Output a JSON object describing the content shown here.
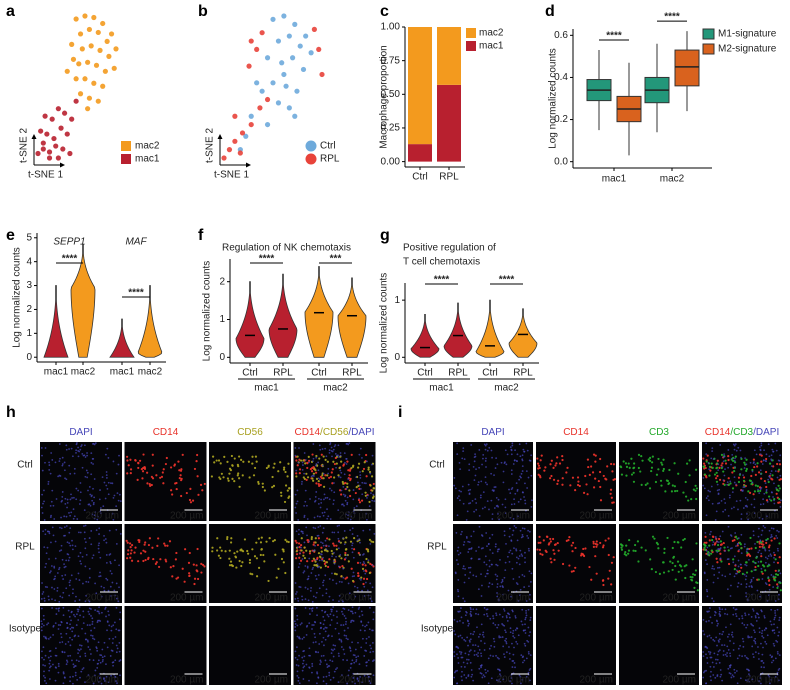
{
  "chart_data": [
    {
      "type": "scatter",
      "panel": "a",
      "xlabel": "t-SNE 1",
      "ylabel": "t-SNE 2",
      "legend_marker": "square",
      "series": [
        {
          "name": "mac2",
          "color": "#f39a1e",
          "x": [
            45,
            55,
            65,
            75,
            85,
            50,
            60,
            70,
            80,
            90,
            40,
            52,
            62,
            72,
            82,
            48,
            58,
            68,
            78,
            88,
            55,
            65,
            75,
            45,
            60,
            70,
            35,
            42,
            50,
            58
          ],
          "y": [
            95,
            97,
            96,
            92,
            85,
            85,
            88,
            86,
            80,
            75,
            78,
            75,
            77,
            74,
            70,
            65,
            66,
            64,
            60,
            62,
            55,
            52,
            50,
            55,
            42,
            40,
            60,
            68,
            45,
            35
          ]
        },
        {
          "name": "mac1",
          "color": "#b8202f",
          "x": [
            2,
            8,
            15,
            22,
            30,
            38,
            5,
            12,
            20,
            28,
            35,
            10,
            18,
            25,
            32,
            40,
            45,
            15,
            8,
            25
          ],
          "y": [
            5,
            8,
            6,
            10,
            8,
            5,
            20,
            18,
            15,
            22,
            18,
            30,
            28,
            35,
            32,
            28,
            40,
            2,
            12,
            2
          ]
        }
      ]
    },
    {
      "type": "scatter",
      "panel": "b",
      "xlabel": "t-SNE 1",
      "ylabel": "t-SNE 2",
      "legend_marker": "circle",
      "series": [
        {
          "name": "Ctrl",
          "color": "#6eaadb",
          "x": [
            50,
            60,
            70,
            80,
            55,
            65,
            75,
            85,
            45,
            58,
            68,
            78,
            50,
            62,
            72,
            40,
            55,
            65,
            30,
            45,
            25,
            20,
            35,
            60,
            70
          ],
          "y": [
            88,
            90,
            85,
            78,
            75,
            78,
            72,
            68,
            65,
            62,
            65,
            58,
            50,
            48,
            45,
            45,
            38,
            35,
            30,
            25,
            18,
            10,
            50,
            55,
            30
          ]
        },
        {
          "name": "RPL",
          "color": "#e8433a",
          "x": [
            30,
            35,
            40,
            88,
            92,
            5,
            10,
            15,
            22,
            30,
            38,
            15,
            45,
            95,
            28,
            20
          ],
          "y": [
            75,
            70,
            80,
            82,
            70,
            5,
            10,
            15,
            20,
            25,
            35,
            30,
            40,
            55,
            60,
            8
          ]
        }
      ]
    },
    {
      "type": "bar",
      "panel": "c",
      "ylabel": "Macrophage proportion",
      "categories": [
        "Ctrl",
        "RPL"
      ],
      "series": [
        {
          "name": "mac1",
          "color": "#b8202f",
          "values": [
            0.13,
            0.57
          ]
        },
        {
          "name": "mac2",
          "color": "#f39a1e",
          "values": [
            0.87,
            0.43
          ]
        }
      ],
      "ylim": [
        -0.04,
        1.0
      ],
      "yticks": [
        {
          "value": 0,
          "label": "0.00"
        },
        0.25,
        {
          "value": 0.5,
          "label": "0.50"
        },
        0.75,
        {
          "value": 1,
          "label": "1.00"
        }
      ]
    },
    {
      "type": "box",
      "panel": "d",
      "ylabel": "Log normalized counts",
      "categories": [
        "mac1",
        "mac2"
      ],
      "series": [
        {
          "name": "M1-signature",
          "color": "#23977a",
          "boxes": [
            {
              "min": 0.15,
              "q1": 0.29,
              "median": 0.34,
              "q3": 0.39,
              "max": 0.53
            },
            {
              "min": 0.14,
              "q1": 0.28,
              "median": 0.34,
              "q3": 0.4,
              "max": 0.56
            }
          ]
        },
        {
          "name": "M2-signature",
          "color": "#d9621e",
          "boxes": [
            {
              "min": 0.03,
              "q1": 0.19,
              "median": 0.25,
              "q3": 0.31,
              "max": 0.47
            },
            {
              "min": 0.24,
              "q1": 0.36,
              "median": 0.45,
              "q3": 0.53,
              "max": 0.62
            }
          ]
        }
      ],
      "annotations": [
        "****",
        "****"
      ],
      "ylim": [
        -0.03,
        0.63
      ],
      "yticks": [
        {
          "value": 0,
          "label": "0.0"
        },
        0.2,
        0.4,
        0.6
      ]
    },
    {
      "type": "violin",
      "panel": "e",
      "ylabel": "Log normalized counts",
      "group_position": "top",
      "groups": [
        "SEPP1",
        "MAF"
      ],
      "categories": [
        "mac1",
        "mac2",
        "mac1",
        "mac2"
      ],
      "violins": [
        {
          "color": "#b8202f",
          "min": 0,
          "max": 3.0,
          "peak": 0
        },
        {
          "color": "#f39a1e",
          "min": 0,
          "max": 4.7,
          "peak": 2.9
        },
        {
          "color": "#b8202f",
          "min": 0,
          "max": 1.6,
          "peak": 0
        },
        {
          "color": "#f39a1e",
          "min": 0,
          "max": 3.0,
          "peak": 0.2
        }
      ],
      "annotations": [
        "****",
        "****"
      ],
      "ylim": [
        -0.2,
        5.2
      ],
      "yticks": [
        0,
        1,
        2,
        3,
        4,
        5
      ]
    },
    {
      "type": "violin",
      "panel": "f",
      "title": [
        "Regulation of NK chemotaxis"
      ],
      "ylabel": "Log normalized counts",
      "group_position": "bottom",
      "groups": [
        "mac1",
        "mac2"
      ],
      "categories": [
        "Ctrl",
        "RPL",
        "Ctrl",
        "RPL"
      ],
      "violins": [
        {
          "color": "#b8202f",
          "min": 0,
          "max": 2.0,
          "peak": 0.5,
          "median": 0.58
        },
        {
          "color": "#b8202f",
          "min": 0,
          "max": 2.2,
          "peak": 0.75,
          "median": 0.75
        },
        {
          "color": "#f39a1e",
          "min": 0,
          "max": 2.4,
          "peak": 1.2,
          "median": 1.18
        },
        {
          "color": "#f39a1e",
          "min": 0,
          "max": 2.1,
          "peak": 1.1,
          "median": 1.1
        }
      ],
      "annotations": [
        "****",
        "***"
      ],
      "ylim": [
        -0.15,
        2.6
      ],
      "yticks": [
        0,
        1,
        2
      ]
    },
    {
      "type": "violin",
      "panel": "g",
      "title": [
        "Positive regulation of",
        "T cell chemotaxis"
      ],
      "ylabel": "Log normalized counts",
      "group_position": "bottom",
      "groups": [
        "mac1",
        "mac2"
      ],
      "categories": [
        "Ctrl",
        "RPL",
        "Ctrl",
        "RPL"
      ],
      "violins": [
        {
          "color": "#b8202f",
          "min": 0,
          "max": 0.75,
          "peak": 0.15,
          "median": 0.17
        },
        {
          "color": "#b8202f",
          "min": 0,
          "max": 0.95,
          "peak": 0.2,
          "median": 0.38
        },
        {
          "color": "#f39a1e",
          "min": 0,
          "max": 1.0,
          "peak": 0.1,
          "median": 0.2
        },
        {
          "color": "#f39a1e",
          "min": 0,
          "max": 0.85,
          "peak": 0.25,
          "median": 0.4
        }
      ],
      "annotations": [
        "****",
        "****"
      ],
      "ylim": [
        -0.1,
        1.3
      ],
      "yticks": [
        0,
        1
      ]
    }
  ],
  "images": [
    {
      "panel": "h",
      "rows": [
        "Ctrl",
        "RPL",
        "Isotype"
      ],
      "columns": [
        {
          "parts": [
            {
              "text": "DAPI",
              "color": "#4646b8"
            }
          ]
        },
        {
          "parts": [
            {
              "text": "CD14",
              "color": "#e8322a"
            }
          ]
        },
        {
          "parts": [
            {
              "text": "CD56",
              "color": "#a8a020"
            }
          ]
        },
        {
          "parts": [
            {
              "text": "CD14",
              "color": "#e8322a"
            },
            {
              "text": "/CD56",
              "color": "#a8a020"
            },
            {
              "text": "/DAPI",
              "color": "#4646b8"
            }
          ]
        }
      ]
    },
    {
      "panel": "i",
      "rows": [
        "Ctrl",
        "RPL",
        "Isotype"
      ],
      "columns": [
        {
          "parts": [
            {
              "text": "DAPI",
              "color": "#4646b8"
            }
          ]
        },
        {
          "parts": [
            {
              "text": "CD14",
              "color": "#e8322a"
            }
          ]
        },
        {
          "parts": [
            {
              "text": "CD3",
              "color": "#22a82a"
            }
          ]
        },
        {
          "parts": [
            {
              "text": "CD14",
              "color": "#e8322a"
            },
            {
              "text": "/CD3",
              "color": "#22a82a"
            },
            {
              "text": "/DAPI",
              "color": "#4646b8"
            }
          ]
        }
      ]
    }
  ],
  "scale_bar": "200 µm"
}
